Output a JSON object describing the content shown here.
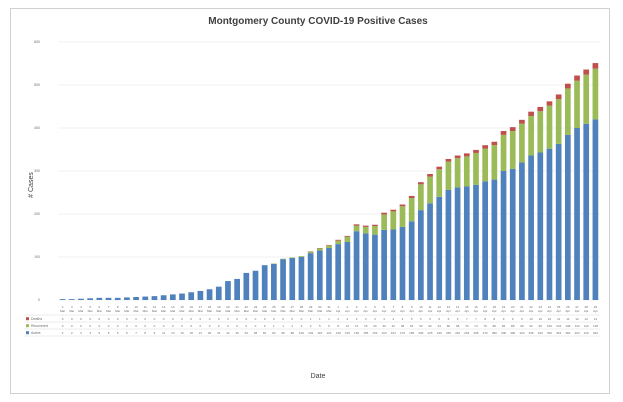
{
  "chart_data": {
    "type": "bar",
    "stacked": true,
    "title": "Montgomery County COVID-19 Positive Cases",
    "xlabel": "Date",
    "ylabel": "# Cases",
    "ylim": [
      0,
      600
    ],
    "yticks": [
      0,
      100,
      200,
      300,
      400,
      500,
      600
    ],
    "grid": true,
    "legend": "data-table",
    "colors": {
      "Deaths": "#c0504d",
      "Recovered": "#9bbb59",
      "Active": "#4f81bd"
    },
    "series": [
      {
        "name": "Deaths",
        "values": [
          0,
          0,
          0,
          0,
          0,
          0,
          0,
          0,
          0,
          0,
          0,
          0,
          0,
          0,
          0,
          0,
          0,
          0,
          0,
          0,
          0,
          0,
          0,
          0,
          0,
          0,
          0,
          1,
          1,
          1,
          2,
          2,
          3,
          3,
          3,
          4,
          4,
          4,
          5,
          5,
          6,
          6,
          6,
          6,
          7,
          7,
          8,
          8,
          9,
          9,
          9,
          10,
          10,
          10,
          11,
          11,
          12,
          12,
          13
        ]
      },
      {
        "name": "Recovered",
        "values": [
          0,
          0,
          0,
          0,
          0,
          0,
          0,
          0,
          0,
          0,
          0,
          0,
          0,
          0,
          0,
          0,
          0,
          0,
          0,
          0,
          0,
          0,
          0,
          1,
          1,
          1,
          2,
          3,
          5,
          6,
          8,
          12,
          13,
          15,
          20,
          36,
          42,
          48,
          54,
          60,
          62,
          64,
          66,
          68,
          70,
          74,
          76,
          80,
          84,
          88,
          90,
          92,
          96,
          100,
          104,
          108,
          110,
          114,
          118
        ]
      },
      {
        "name": "Active",
        "values": [
          2,
          2,
          3,
          4,
          5,
          5,
          5,
          6,
          7,
          8,
          9,
          11,
          13,
          15,
          18,
          21,
          25,
          31,
          44,
          49,
          63,
          68,
          81,
          84,
          95,
          98,
          100,
          109,
          115,
          121,
          130,
          135,
          160,
          155,
          152,
          163,
          164,
          170,
          183,
          209,
          225,
          240,
          256,
          262,
          264,
          268,
          276,
          280,
          300,
          305,
          320,
          336,
          343,
          352,
          363,
          384,
          400,
          410,
          420
        ]
      }
    ],
    "categories": [
      "2-Mar",
      "3-Mar",
      "4-Mar",
      "5-Mar",
      "6-Mar",
      "7-Mar",
      "8-Mar",
      "9-Mar",
      "10-Mar",
      "11-Mar",
      "12-Mar",
      "13-Mar",
      "14-Mar",
      "15-Mar",
      "16-Mar",
      "17-Mar",
      "18-Mar",
      "19-Mar",
      "20-Mar",
      "21-Mar",
      "22-Mar",
      "23-Mar",
      "24-Mar",
      "25-Mar",
      "26-Mar",
      "27-Mar",
      "28-Mar",
      "29-Mar",
      "30-Mar",
      "31-Mar",
      "1-Apr",
      "2-Apr",
      "3-Apr",
      "4-Apr",
      "5-Apr",
      "6-Apr",
      "7-Apr",
      "8-Apr",
      "9-Apr",
      "10-Apr",
      "11-Apr",
      "12-Apr",
      "13-Apr",
      "14-Apr",
      "15-Apr",
      "16-Apr",
      "17-Apr",
      "18-Apr",
      "19-Apr",
      "20-Apr",
      "21-Apr",
      "22-Apr",
      "23-Apr",
      "24-Apr",
      "25-Apr",
      "26-Apr",
      "27-Apr",
      "28-Apr",
      "29-Apr"
    ]
  }
}
